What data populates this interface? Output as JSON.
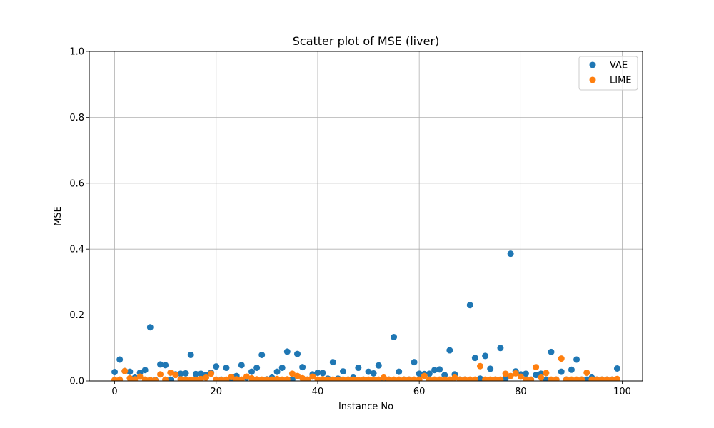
{
  "chart_data": {
    "type": "scatter",
    "title": "Scatter plot of MSE (liver)",
    "xlabel": "Instance No",
    "ylabel": "MSE",
    "xlim": [
      -5,
      104
    ],
    "ylim": [
      0,
      1.0
    ],
    "xticks": [
      0,
      20,
      40,
      60,
      80,
      100
    ],
    "yticks": [
      0.0,
      0.2,
      0.4,
      0.6,
      0.8,
      1.0
    ],
    "ytick_labels": [
      "0.0",
      "0.2",
      "0.4",
      "0.6",
      "0.8",
      "1.0"
    ],
    "grid": true,
    "legend_position": "top-right",
    "series": [
      {
        "name": "VAE",
        "color": "#1f77b4",
        "x": [
          0,
          1,
          2,
          3,
          4,
          5,
          6,
          7,
          8,
          9,
          10,
          11,
          12,
          13,
          14,
          15,
          16,
          17,
          18,
          19,
          20,
          21,
          22,
          23,
          24,
          25,
          26,
          27,
          28,
          29,
          30,
          31,
          32,
          33,
          34,
          35,
          36,
          37,
          38,
          39,
          40,
          41,
          42,
          43,
          44,
          45,
          46,
          47,
          48,
          49,
          50,
          51,
          52,
          53,
          54,
          55,
          56,
          57,
          58,
          59,
          60,
          61,
          62,
          63,
          64,
          65,
          66,
          67,
          68,
          69,
          70,
          71,
          72,
          73,
          74,
          75,
          76,
          77,
          78,
          79,
          80,
          81,
          82,
          83,
          84,
          85,
          86,
          87,
          88,
          89,
          90,
          91,
          92,
          93,
          94,
          95,
          96,
          97,
          98,
          99
        ],
        "y": [
          0.027,
          0.065,
          0.03,
          0.028,
          0.01,
          0.025,
          0.033,
          0.163,
          0.003,
          0.05,
          0.048,
          0.004,
          0.02,
          0.022,
          0.023,
          0.079,
          0.021,
          0.022,
          0.018,
          0.025,
          0.044,
          0.004,
          0.04,
          0.005,
          0.015,
          0.048,
          0.01,
          0.028,
          0.04,
          0.079,
          0.005,
          0.01,
          0.028,
          0.04,
          0.089,
          0.005,
          0.082,
          0.042,
          0.004,
          0.02,
          0.025,
          0.024,
          0.007,
          0.057,
          0.007,
          0.029,
          0.004,
          0.01,
          0.04,
          0.004,
          0.028,
          0.023,
          0.047,
          0.004,
          0.004,
          0.133,
          0.028,
          0.004,
          0.004,
          0.057,
          0.022,
          0.021,
          0.022,
          0.033,
          0.035,
          0.018,
          0.093,
          0.02,
          0.004,
          0.004,
          0.23,
          0.07,
          0.007,
          0.076,
          0.037,
          0.004,
          0.1,
          0.007,
          0.386,
          0.029,
          0.02,
          0.022,
          0.004,
          0.018,
          0.022,
          0.004,
          0.088,
          0.004,
          0.028,
          0.004,
          0.034,
          0.065,
          0.004,
          0.004,
          0.01,
          0.004,
          0.004,
          0.004,
          0.004,
          0.038
        ]
      },
      {
        "name": "LIME",
        "color": "#ff7f0e",
        "x": [
          0,
          1,
          2,
          3,
          4,
          5,
          6,
          7,
          8,
          9,
          10,
          11,
          12,
          13,
          14,
          15,
          16,
          17,
          18,
          19,
          20,
          21,
          22,
          23,
          24,
          25,
          26,
          27,
          28,
          29,
          30,
          31,
          32,
          33,
          34,
          35,
          36,
          37,
          38,
          39,
          40,
          41,
          42,
          43,
          44,
          45,
          46,
          47,
          48,
          49,
          50,
          51,
          52,
          53,
          54,
          55,
          56,
          57,
          58,
          59,
          60,
          61,
          62,
          63,
          64,
          65,
          66,
          67,
          68,
          69,
          70,
          71,
          72,
          73,
          74,
          75,
          76,
          77,
          78,
          79,
          80,
          81,
          82,
          83,
          84,
          85,
          86,
          87,
          88,
          89,
          90,
          91,
          92,
          93,
          94,
          95,
          96,
          97,
          98,
          99
        ],
        "y": [
          0.003,
          0.004,
          0.03,
          0.008,
          0.005,
          0.013,
          0.004,
          0.003,
          0.002,
          0.02,
          0.004,
          0.025,
          0.018,
          0.005,
          0.004,
          0.003,
          0.004,
          0.006,
          0.01,
          0.022,
          0.004,
          0.003,
          0.004,
          0.012,
          0.005,
          0.004,
          0.013,
          0.008,
          0.005,
          0.004,
          0.004,
          0.004,
          0.006,
          0.004,
          0.005,
          0.022,
          0.015,
          0.008,
          0.004,
          0.013,
          0.004,
          0.005,
          0.004,
          0.004,
          0.004,
          0.004,
          0.004,
          0.004,
          0.003,
          0.004,
          0.004,
          0.004,
          0.004,
          0.01,
          0.004,
          0.004,
          0.004,
          0.004,
          0.004,
          0.004,
          0.004,
          0.015,
          0.004,
          0.004,
          0.004,
          0.004,
          0.004,
          0.01,
          0.004,
          0.004,
          0.004,
          0.004,
          0.045,
          0.004,
          0.004,
          0.004,
          0.004,
          0.022,
          0.015,
          0.023,
          0.013,
          0.004,
          0.004,
          0.042,
          0.01,
          0.024,
          0.004,
          0.004,
          0.068,
          0.004,
          0.004,
          0.004,
          0.004,
          0.025,
          0.004,
          0.004,
          0.004,
          0.004,
          0.004,
          0.006
        ]
      }
    ]
  }
}
